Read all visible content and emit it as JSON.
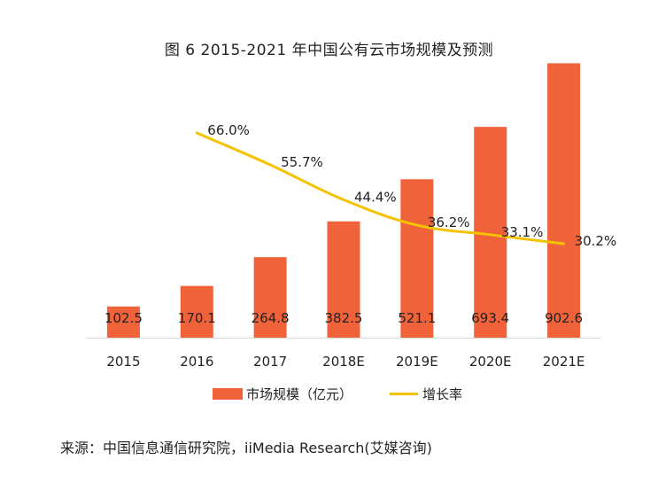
{
  "figure": {
    "title": "图 6   2015-2021 年中国公有云市场规模及预测",
    "source": "来源：中国信息通信研究院，iiMedia Research(艾媒咨询)"
  },
  "colors": {
    "bar": "#f0623a",
    "line": "#f5c200",
    "axis": "#d9d9d9"
  },
  "chart_data": {
    "type": "bar",
    "title": "2015-2021 年中国公有云市场规模及预测",
    "categories": [
      "2015",
      "2016",
      "2017",
      "2018E",
      "2019E",
      "2020E",
      "2021E"
    ],
    "series": [
      {
        "name": "市场规模（亿元）",
        "type": "bar",
        "values": [
          102.5,
          170.1,
          264.8,
          382.5,
          521.1,
          693.4,
          902.6
        ],
        "labels": [
          "102.5",
          "170.1",
          "264.8",
          "382.5",
          "521.1",
          "693.4",
          "902.6"
        ]
      },
      {
        "name": "增长率",
        "type": "line",
        "values": [
          null,
          66.0,
          55.7,
          44.4,
          36.2,
          33.1,
          30.2
        ],
        "labels": [
          "",
          "66.0%",
          "55.7%",
          "44.4%",
          "36.2%",
          "33.1%",
          "30.2%"
        ]
      }
    ],
    "ylim": [
      0,
      1000
    ],
    "y2lim": [
      0,
      100
    ],
    "legend": {
      "position": "bottom",
      "entries": [
        "市场规模（亿元）",
        "增长率"
      ]
    },
    "grid": false
  }
}
